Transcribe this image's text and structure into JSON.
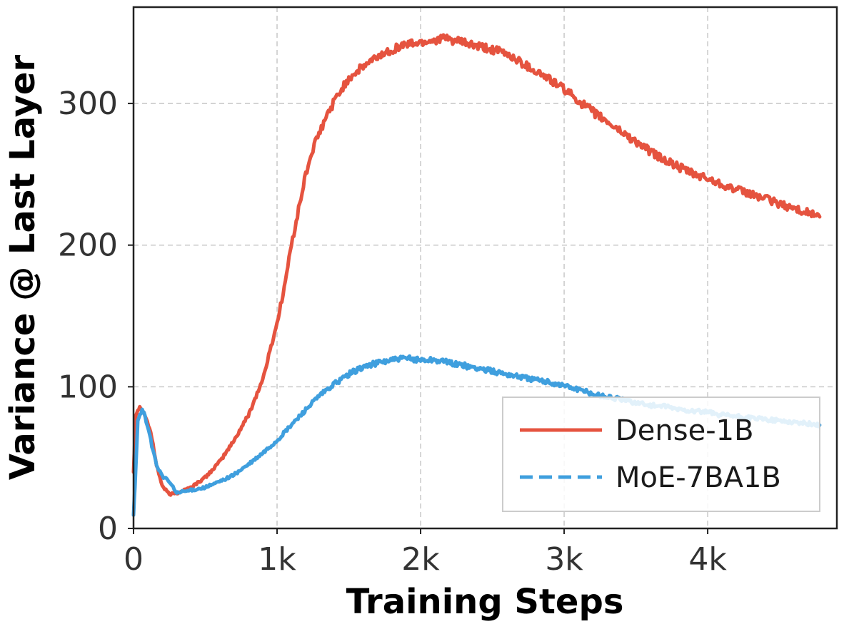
{
  "chart_data": {
    "type": "line",
    "title": "",
    "xlabel": "Training Steps",
    "ylabel": "Variance @ Last Layer",
    "xlim": [
      0,
      4900
    ],
    "ylim": [
      0,
      368
    ],
    "x_ticks": [
      {
        "value": 0,
        "label": "0"
      },
      {
        "value": 1000,
        "label": "1k"
      },
      {
        "value": 2000,
        "label": "2k"
      },
      {
        "value": 3000,
        "label": "3k"
      },
      {
        "value": 4000,
        "label": "4k"
      }
    ],
    "y_ticks": [
      {
        "value": 0,
        "label": "0"
      },
      {
        "value": 100,
        "label": "100"
      },
      {
        "value": 200,
        "label": "200"
      },
      {
        "value": 300,
        "label": "300"
      }
    ],
    "grid": true,
    "legend_position": "bottom-right",
    "series": [
      {
        "name": "Dense-1B",
        "color": "#e5533f",
        "style": "solid",
        "x": [
          0,
          15,
          30,
          50,
          80,
          120,
          160,
          200,
          250,
          300,
          400,
          500,
          600,
          700,
          800,
          900,
          950,
          1000,
          1050,
          1100,
          1150,
          1200,
          1250,
          1300,
          1350,
          1400,
          1450,
          1500,
          1600,
          1700,
          1800,
          1900,
          2000,
          2100,
          2150,
          2200,
          2300,
          2400,
          2500,
          2600,
          2700,
          2800,
          2900,
          3000,
          3100,
          3200,
          3300,
          3400,
          3500,
          3600,
          3700,
          3800,
          3900,
          4000,
          4100,
          4200,
          4300,
          4400,
          4500,
          4600,
          4700,
          4780
        ],
        "values": [
          40,
          80,
          84,
          86,
          80,
          68,
          45,
          30,
          24,
          25,
          29,
          36,
          47,
          62,
          80,
          105,
          125,
          145,
          170,
          200,
          225,
          250,
          268,
          280,
          292,
          302,
          310,
          318,
          326,
          333,
          338,
          342,
          343,
          345,
          346,
          345,
          343,
          340,
          338,
          335,
          329,
          323,
          317,
          310,
          302,
          294,
          287,
          280,
          273,
          266,
          260,
          255,
          250,
          247,
          243,
          239,
          236,
          233,
          229,
          226,
          223,
          220
        ]
      },
      {
        "name": "MoE-7BA1B",
        "color": "#3f9fde",
        "style": "dashed",
        "x": [
          0,
          10,
          30,
          60,
          80,
          120,
          160,
          200,
          250,
          300,
          400,
          500,
          600,
          700,
          800,
          900,
          1000,
          1100,
          1200,
          1300,
          1400,
          1500,
          1600,
          1700,
          1800,
          1900,
          2000,
          2100,
          2200,
          2300,
          2400,
          2500,
          2600,
          2700,
          2800,
          2900,
          3000,
          3100,
          3200,
          3300,
          3400,
          3500,
          3600,
          3700,
          3800,
          3900,
          4000,
          4100,
          4200,
          4300,
          4400,
          4500,
          4600,
          4700,
          4780
        ],
        "values": [
          10,
          30,
          75,
          84,
          80,
          62,
          45,
          37,
          33,
          25,
          27,
          29,
          33,
          38,
          45,
          53,
          62,
          73,
          84,
          94,
          102,
          109,
          114,
          117,
          119,
          120,
          119,
          119,
          117,
          115,
          113,
          111,
          109,
          107,
          105,
          103,
          101,
          98,
          95,
          93,
          91,
          89,
          87,
          86,
          84,
          83,
          82,
          80,
          79,
          78,
          77,
          76,
          75,
          74,
          73
        ]
      }
    ]
  }
}
